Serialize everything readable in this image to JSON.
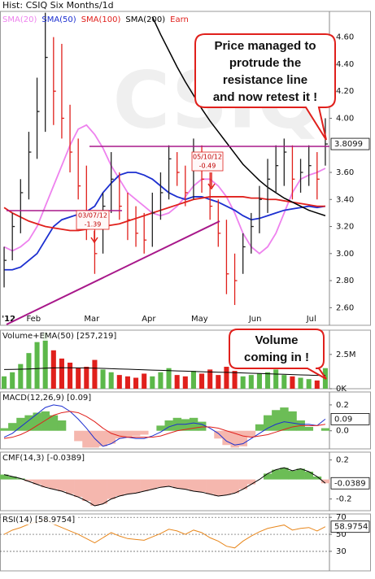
{
  "header": {
    "title": "Hist: CSIQ Six Months/1d"
  },
  "chart_data": [
    {
      "type": "ohlc",
      "watermark": "CSIQ",
      "categories": [
        "'12",
        null,
        null,
        "Feb",
        null,
        null,
        null,
        null,
        null,
        null,
        "Mar",
        null,
        null,
        null,
        null,
        null,
        null,
        "Apr",
        null,
        null,
        null,
        null,
        null,
        "May",
        null,
        null,
        null,
        null,
        null,
        null,
        "Jun",
        null,
        null,
        null,
        null,
        null,
        null,
        "Jul",
        null,
        null
      ],
      "high": [
        3.05,
        3.3,
        3.55,
        3.9,
        4.3,
        4.78,
        4.6,
        4.55,
        4.1,
        3.85,
        3.65,
        3.2,
        3.45,
        3.75,
        3.6,
        3.45,
        3.35,
        3.3,
        3.45,
        3.6,
        3.8,
        3.75,
        3.65,
        3.85,
        3.8,
        3.6,
        3.4,
        3.25,
        3.0,
        3.15,
        3.3,
        3.5,
        3.7,
        3.8,
        3.85,
        3.8,
        3.7,
        3.8,
        3.75,
        4.0
      ],
      "low": [
        2.75,
        2.95,
        3.15,
        3.4,
        3.7,
        3.9,
        3.95,
        3.85,
        3.6,
        3.4,
        3.1,
        2.85,
        3.0,
        3.3,
        3.25,
        3.1,
        3.05,
        3.0,
        3.05,
        3.25,
        3.4,
        3.5,
        3.35,
        3.4,
        3.45,
        3.25,
        3.05,
        2.7,
        2.62,
        2.85,
        3.0,
        3.15,
        3.3,
        3.45,
        3.5,
        3.4,
        3.45,
        3.5,
        3.4,
        3.65
      ],
      "close": [
        2.95,
        3.2,
        3.45,
        3.75,
        4.05,
        4.45,
        4.2,
        4.0,
        3.75,
        3.5,
        3.3,
        3.0,
        3.35,
        3.55,
        3.35,
        3.25,
        3.15,
        3.1,
        3.3,
        3.45,
        3.7,
        3.6,
        3.45,
        3.7,
        3.55,
        3.35,
        3.15,
        2.85,
        2.8,
        3.05,
        3.2,
        3.4,
        3.55,
        3.65,
        3.75,
        3.55,
        3.6,
        3.65,
        3.55,
        3.8099
      ],
      "up_color": "#222222",
      "down_color": "#e0201c",
      "series": [
        {
          "name": "SMA(20)",
          "color": "#ee82ee",
          "values": [
            3.05,
            3.02,
            3.05,
            3.1,
            3.2,
            3.35,
            3.5,
            3.65,
            3.8,
            3.92,
            3.95,
            3.88,
            3.78,
            3.65,
            3.55,
            3.45,
            3.4,
            3.35,
            3.3,
            3.28,
            3.3,
            3.35,
            3.42,
            3.5,
            3.55,
            3.55,
            3.5,
            3.42,
            3.3,
            3.15,
            3.05,
            3.0,
            3.05,
            3.15,
            3.3,
            3.45,
            3.55,
            3.58,
            3.6,
            3.63
          ]
        },
        {
          "name": "SMA(50)",
          "color": "#1c2fd0",
          "values": [
            2.88,
            2.88,
            2.9,
            2.95,
            3.0,
            3.1,
            3.2,
            3.25,
            3.27,
            3.29,
            3.31,
            3.35,
            3.45,
            3.52,
            3.58,
            3.6,
            3.6,
            3.58,
            3.55,
            3.5,
            3.45,
            3.42,
            3.4,
            3.42,
            3.42,
            3.4,
            3.38,
            3.35,
            3.32,
            3.28,
            3.25,
            3.26,
            3.28,
            3.3,
            3.32,
            3.33,
            3.34,
            3.35,
            3.34,
            3.35
          ]
        },
        {
          "name": "SMA(100)",
          "color": "#e0201c",
          "values": [
            3.34,
            3.3,
            3.27,
            3.24,
            3.22,
            3.2,
            3.19,
            3.18,
            3.17,
            3.17,
            3.18,
            3.19,
            3.2,
            3.21,
            3.22,
            3.24,
            3.26,
            3.28,
            3.3,
            3.32,
            3.34,
            3.36,
            3.38,
            3.4,
            3.41,
            3.42,
            3.42,
            3.42,
            3.42,
            3.42,
            3.41,
            3.41,
            3.4,
            3.4,
            3.39,
            3.38,
            3.37,
            3.36,
            3.35,
            3.35
          ]
        },
        {
          "name": "SMA(200)",
          "color": "#000000",
          "values": [
            null,
            null,
            null,
            null,
            null,
            null,
            null,
            null,
            null,
            null,
            null,
            null,
            null,
            null,
            null,
            null,
            null,
            null,
            4.75,
            4.62,
            4.5,
            4.38,
            4.27,
            4.17,
            4.07,
            3.98,
            3.9,
            3.82,
            3.74,
            3.66,
            3.6,
            3.54,
            3.49,
            3.45,
            3.41,
            3.38,
            3.35,
            3.32,
            3.3,
            3.28
          ]
        }
      ],
      "earnings": {
        "name": "Earn",
        "color": "#e0201c",
        "markers": [
          {
            "date": "03/07/12",
            "value": -1.39
          },
          {
            "date": "05/10/12",
            "value": -0.49
          }
        ]
      },
      "callout": [
        "Price managed to",
        "protrude the",
        "resistance line",
        "and now retest it !"
      ],
      "ylim": [
        2.47,
        4.79
      ],
      "yticks": [
        {
          "value": 4.6,
          "label": "4.60"
        },
        {
          "value": 4.4,
          "label": "4.40"
        },
        {
          "value": 4.2,
          "label": "4.20"
        },
        {
          "value": 4.0,
          "label": "4.00"
        },
        {
          "value": 3.6,
          "label": "3.60"
        },
        {
          "value": 3.4,
          "label": "3.40"
        },
        {
          "value": 3.2,
          "label": "3.20"
        },
        {
          "value": 3.0,
          "label": "3.00"
        },
        {
          "value": 2.8,
          "label": "2.80"
        },
        {
          "value": 2.6,
          "label": "2.60"
        }
      ]
    },
    {
      "type": "bar",
      "title": "Volume+EMA(50) [257,219]",
      "values": [
        900000,
        1200000,
        1800000,
        2600000,
        3400000,
        4100000,
        2800000,
        2200000,
        1900000,
        1500000,
        1600000,
        2100000,
        1400000,
        1200000,
        1000000,
        900000,
        800000,
        1100000,
        900000,
        1200000,
        1500000,
        1000000,
        900000,
        1300000,
        1100000,
        1400000,
        1000000,
        1600000,
        1300000,
        900000,
        1000000,
        1100000,
        1200000,
        1400000,
        1000000,
        900000,
        800000,
        700000,
        600000,
        1500000
      ],
      "up_color": "#5cb84a",
      "down_color": "#e0201c",
      "series": [
        {
          "color": "#000000",
          "values": [
            1400000,
            1410000,
            1420000,
            1440000,
            1470000,
            1500000,
            1520000,
            1530000,
            1530000,
            1520000,
            1510000,
            1500000,
            1480000,
            1460000,
            1440000,
            1420000,
            1400000,
            1380000,
            1360000,
            1340000,
            1320000,
            1300000,
            1280000,
            1260000,
            1240000,
            1220000,
            1200000,
            1190000,
            1170000,
            1150000,
            1130000,
            1110000,
            1090000,
            1070000,
            1050000,
            1030000,
            1010000,
            990000,
            970000,
            980000
          ]
        }
      ],
      "callout": [
        "Volume",
        "coming in !"
      ],
      "ylim": [
        0,
        4270000
      ],
      "yticks": [
        {
          "value": 2500000,
          "label": "2.5M"
        },
        {
          "value": 0,
          "label": "0K"
        }
      ]
    },
    {
      "type": "macd",
      "title": "MACD(12,26,9) [0.09]",
      "series": [
        {
          "color": "#1c2fd0",
          "values": [
            -0.05,
            -0.02,
            0.03,
            0.08,
            0.13,
            0.18,
            0.2,
            0.19,
            0.15,
            0.09,
            0.02,
            -0.06,
            -0.12,
            -0.1,
            -0.06,
            -0.05,
            -0.06,
            -0.06,
            -0.04,
            -0.01,
            0.03,
            0.05,
            0.05,
            0.06,
            0.05,
            0.02,
            -0.02,
            -0.08,
            -0.11,
            -0.1,
            -0.06,
            -0.02,
            0.02,
            0.05,
            0.07,
            0.06,
            0.05,
            0.05,
            0.04,
            0.09
          ]
        },
        {
          "color": "#e0201c",
          "values": [
            -0.06,
            -0.05,
            -0.03,
            0.0,
            0.04,
            0.08,
            0.12,
            0.14,
            0.15,
            0.14,
            0.11,
            0.07,
            0.02,
            -0.02,
            -0.04,
            -0.05,
            -0.05,
            -0.05,
            -0.05,
            -0.04,
            -0.02,
            0.0,
            0.01,
            0.02,
            0.03,
            0.03,
            0.02,
            0.0,
            -0.02,
            -0.04,
            -0.05,
            -0.04,
            -0.03,
            -0.01,
            0.01,
            0.03,
            0.04,
            0.04,
            0.04,
            0.05
          ]
        }
      ],
      "histogram": {
        "pos_color": "#6cbd56",
        "neg_color": "#f5b7ae",
        "values": [
          0.02,
          0.06,
          0.1,
          0.12,
          0.14,
          0.15,
          0.12,
          0.08,
          0.0,
          -0.08,
          -0.13,
          -0.13,
          -0.12,
          -0.1,
          -0.06,
          -0.05,
          -0.04,
          -0.03,
          0.0,
          0.04,
          0.08,
          0.1,
          0.09,
          0.1,
          0.07,
          0.0,
          -0.06,
          -0.11,
          -0.13,
          -0.12,
          -0.05,
          0.05,
          0.12,
          0.16,
          0.18,
          0.15,
          0.08,
          0.03,
          0.0,
          0.02
        ]
      },
      "ylim": [
        -0.14,
        0.3
      ],
      "yticks": [
        0.2,
        {
          "value": 0,
          "label": "0.0"
        }
      ]
    },
    {
      "type": "area",
      "title": "CMF(14,3) [-0.0389]",
      "values": [
        0.05,
        0.03,
        0.01,
        -0.02,
        -0.05,
        -0.08,
        -0.1,
        -0.12,
        -0.15,
        -0.18,
        -0.22,
        -0.27,
        -0.25,
        -0.2,
        -0.17,
        -0.15,
        -0.14,
        -0.12,
        -0.1,
        -0.08,
        -0.07,
        -0.09,
        -0.1,
        -0.12,
        -0.13,
        -0.15,
        -0.17,
        -0.16,
        -0.14,
        -0.1,
        -0.05,
        0.0,
        0.06,
        0.1,
        0.12,
        0.09,
        0.11,
        0.08,
        0.03,
        -0.0389
      ],
      "pos_color": "#6cbd56",
      "neg_color": "#f5b7ae",
      "color": "#000000",
      "ylim": [
        -0.32,
        0.28
      ],
      "yticks": [
        0.2,
        -0.2
      ]
    },
    {
      "type": "line",
      "title": "RSI(14) [58.9754]",
      "values": [
        50,
        55,
        58,
        62,
        65,
        68,
        62,
        58,
        54,
        50,
        45,
        40,
        46,
        52,
        48,
        45,
        44,
        43,
        47,
        51,
        56,
        54,
        50,
        55,
        52,
        46,
        42,
        36,
        34,
        42,
        48,
        53,
        57,
        59,
        61,
        55,
        57,
        58,
        54,
        58.9754
      ],
      "color": "#e8871c",
      "grid": true,
      "ylim": [
        7,
        74
      ],
      "yticks": [
        70,
        50,
        30
      ]
    }
  ]
}
